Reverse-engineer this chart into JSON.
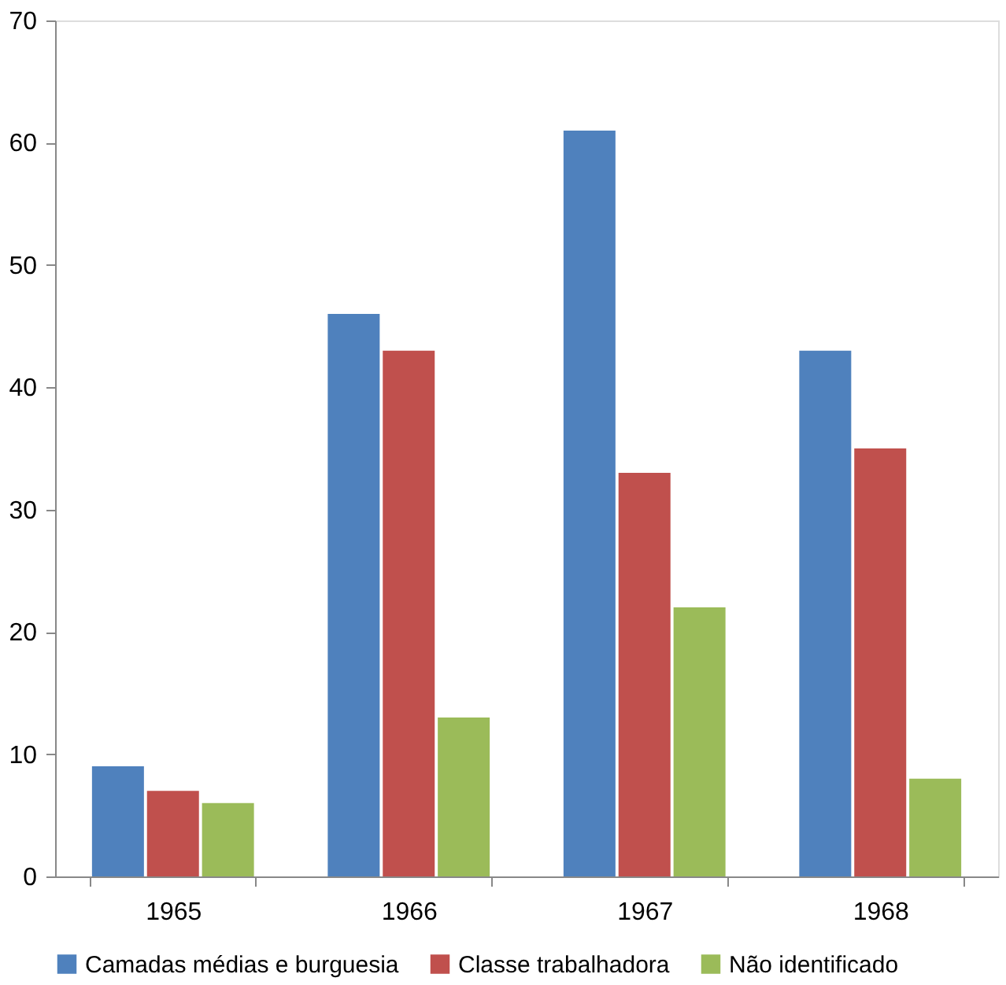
{
  "chart_data": {
    "type": "bar",
    "categories": [
      "1965",
      "1966",
      "1967",
      "1968"
    ],
    "series": [
      {
        "name": "Camadas médias e burguesia",
        "color": "#4f81bd",
        "values": [
          9,
          46,
          61,
          43
        ]
      },
      {
        "name": "Classe trabalhadora",
        "color": "#c0504d",
        "values": [
          7,
          43,
          33,
          35
        ]
      },
      {
        "name": "Não identificado",
        "color": "#9bbb59",
        "values": [
          6,
          13,
          22,
          8
        ]
      }
    ],
    "ylim": [
      0,
      70
    ],
    "yticks": [
      0,
      10,
      20,
      30,
      40,
      50,
      60,
      70
    ],
    "grid": false,
    "legend": "bottom"
  }
}
